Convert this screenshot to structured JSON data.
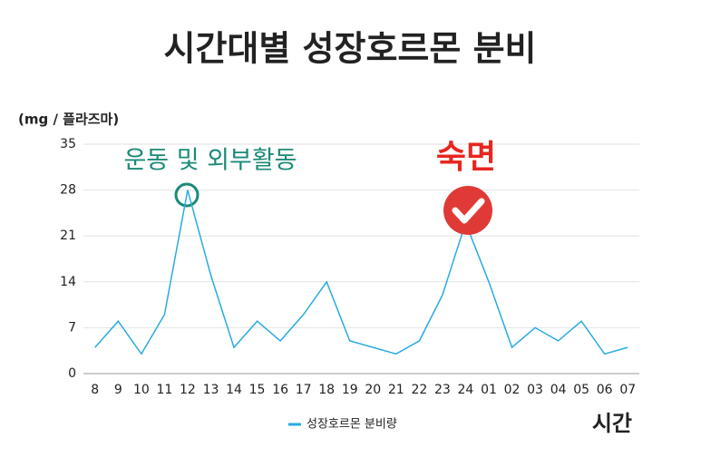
{
  "chart_data": {
    "type": "line",
    "title": "시간대별 성장호르몬 분비",
    "y_axis_label": "(mg / 플라즈마)",
    "x_axis_label": "시간",
    "categories": [
      "8",
      "9",
      "10",
      "11",
      "12",
      "13",
      "14",
      "15",
      "16",
      "17",
      "18",
      "19",
      "20",
      "21",
      "22",
      "23",
      "24",
      "01",
      "02",
      "03",
      "04",
      "05",
      "06",
      "07"
    ],
    "series": [
      {
        "name": "성장호르몬 분비량",
        "color": "#29abe2",
        "values": [
          4,
          8,
          3,
          9,
          28,
          15,
          4,
          8,
          5,
          9,
          14,
          5,
          4,
          3,
          5,
          12,
          23,
          14,
          4,
          7,
          5,
          8,
          3,
          4
        ]
      }
    ],
    "ylim": [
      0,
      35
    ],
    "yticks": [
      0,
      7,
      14,
      21,
      28,
      35
    ],
    "grid": true,
    "annotations": [
      "운동 및 외부활동",
      "숙면"
    ]
  }
}
